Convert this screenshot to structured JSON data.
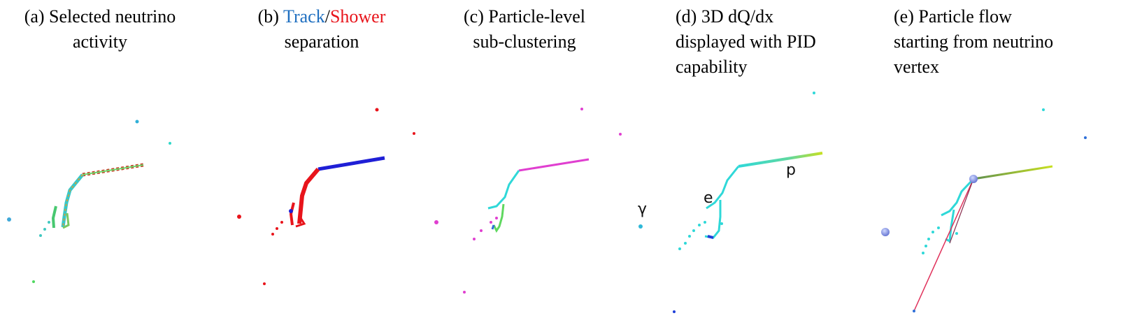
{
  "panels": [
    {
      "id": "a",
      "caption_line1": "(a) Selected neutrino",
      "caption_line2": "activity"
    },
    {
      "id": "b",
      "caption_prefix": "(b) ",
      "caption_track": "Track",
      "caption_sep": "/",
      "caption_shower": "Shower",
      "caption_line2": "separation"
    },
    {
      "id": "c",
      "caption_line1": "(c) Particle-level",
      "caption_line2": "sub-clustering"
    },
    {
      "id": "d",
      "caption_line1": "(d) 3D dQ/dx",
      "caption_line2": "displayed with PID",
      "caption_line3": "capability"
    },
    {
      "id": "e",
      "caption_line1": "(e) Particle flow",
      "caption_line2": "starting from neutrino",
      "caption_line3": "vertex"
    }
  ],
  "particle_labels": {
    "gamma": "γ",
    "electron": "e",
    "proton": "p"
  },
  "colors": {
    "track": "#1f1fd6",
    "shower": "#e8141b",
    "cyan": "#2fd8d8",
    "magenta": "#e03fd0",
    "green": "#5fd85f",
    "flow_line": "#e0305a",
    "vertex": "#7a8fe0"
  }
}
